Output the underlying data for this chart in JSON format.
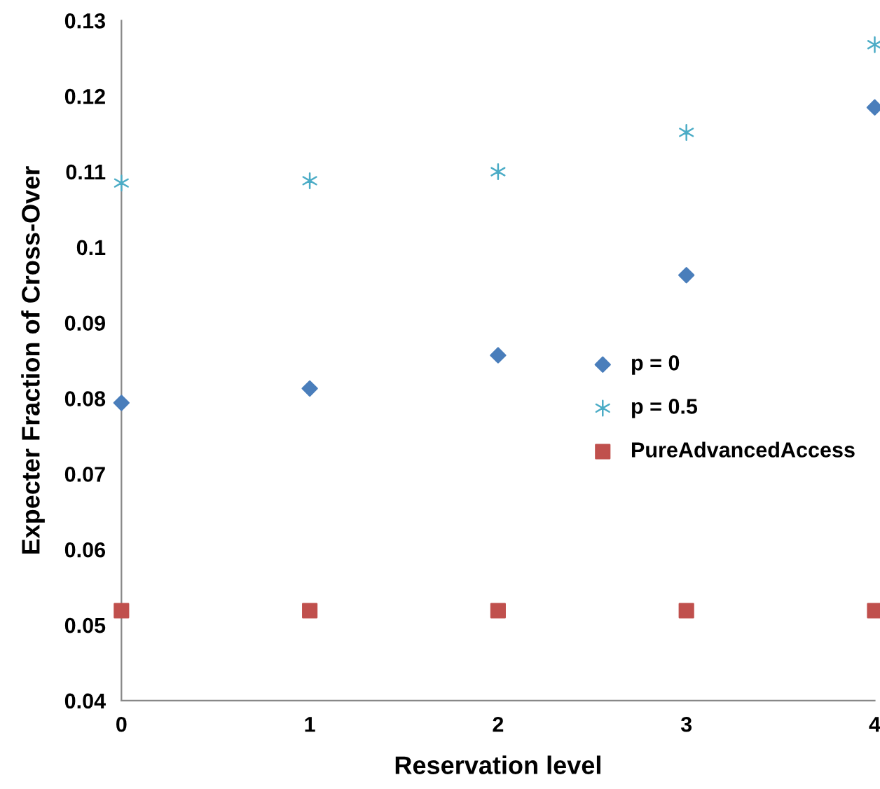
{
  "chart_data": {
    "type": "scatter",
    "xlabel": "Reservation level",
    "ylabel": "Expecter Fraction of Cross-Over",
    "x": [
      0,
      1,
      2,
      3,
      4
    ],
    "series": [
      {
        "name": "p = 0",
        "color": "#4a7ebb",
        "marker": "diamond",
        "values": [
          0.0794,
          0.0813,
          0.0857,
          0.0963,
          0.1185
        ]
      },
      {
        "name": "p = 0.5",
        "color": "#4bacc6",
        "marker": "cross",
        "values": [
          0.1085,
          0.1088,
          0.11,
          0.1152,
          0.1268
        ]
      },
      {
        "name": "PureAdvancedAccess",
        "color": "#c0504d",
        "marker": "square",
        "values": [
          0.0519,
          0.0519,
          0.0519,
          0.0519,
          0.0519
        ]
      }
    ],
    "xlim": [
      0,
      4
    ],
    "xticks": [
      0,
      1,
      2,
      3,
      4
    ],
    "ylim": [
      0.04,
      0.13
    ],
    "yticks": [
      0.04,
      0.05,
      0.06,
      0.07,
      0.08,
      0.09,
      0.1,
      0.11,
      0.12,
      0.13
    ],
    "grid": false,
    "legend": "right"
  }
}
